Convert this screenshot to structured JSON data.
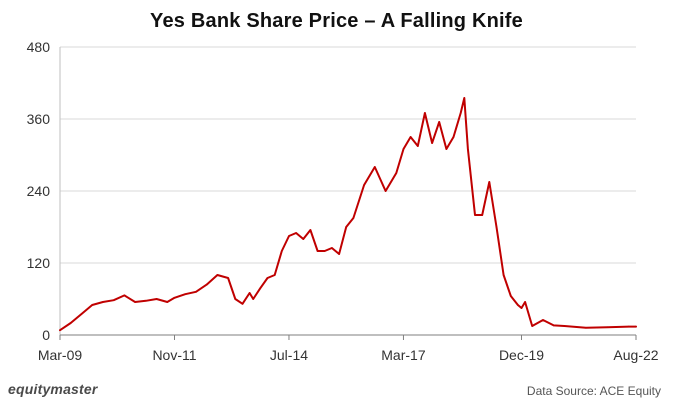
{
  "header": {
    "title": "Yes Bank Share Price – A Falling Knife"
  },
  "footer": {
    "brand": "equitymaster",
    "source": "Data Source: ACE Equity"
  },
  "chart_data": {
    "type": "line",
    "title": "Yes Bank Share Price – A Falling Knife",
    "xlabel": "",
    "ylabel": "",
    "ylim": [
      0,
      480
    ],
    "yticks": [
      0,
      120,
      240,
      360,
      480
    ],
    "xticks": [
      "Mar-09",
      "Nov-11",
      "Jul-14",
      "Mar-17",
      "Dec-19",
      "Aug-22"
    ],
    "grid": true,
    "legend": "none",
    "line_color": "#c00000",
    "series": [
      {
        "x": [
          "Mar-09",
          "Jun-09",
          "Sep-09",
          "Dec-09",
          "Mar-10",
          "Jun-10",
          "Sep-10",
          "Dec-10",
          "Mar-11",
          "Jun-11",
          "Sep-11",
          "Nov-11",
          "Feb-12",
          "May-12",
          "Aug-12",
          "Nov-12",
          "Feb-13",
          "Apr-13",
          "Jun-13",
          "Aug-13",
          "Sep-13",
          "Nov-13",
          "Jan-14",
          "Mar-14",
          "May-14",
          "Jul-14",
          "Sep-14",
          "Nov-14",
          "Jan-15",
          "Mar-15",
          "May-15",
          "Jul-15",
          "Sep-15",
          "Nov-15",
          "Jan-16",
          "Apr-16",
          "Jul-16",
          "Oct-16",
          "Jan-17",
          "Mar-17",
          "May-17",
          "Jul-17",
          "Sep-17",
          "Nov-17",
          "Jan-18",
          "Mar-18",
          "May-18",
          "Jul-18",
          "Aug-18",
          "Sep-18",
          "Nov-18",
          "Jan-19",
          "Mar-19",
          "May-19",
          "Jul-19",
          "Sep-19",
          "Nov-19",
          "Dec-19",
          "Jan-20",
          "Mar-20",
          "Jun-20",
          "Sep-20",
          "Dec-20",
          "Jun-21",
          "Dec-21",
          "Jun-22",
          "Aug-22"
        ],
        "values": [
          8,
          20,
          35,
          50,
          55,
          58,
          66,
          55,
          57,
          60,
          55,
          62,
          68,
          72,
          84,
          100,
          95,
          60,
          52,
          70,
          60,
          78,
          95,
          100,
          140,
          165,
          170,
          160,
          175,
          140,
          140,
          145,
          135,
          180,
          195,
          250,
          280,
          240,
          270,
          310,
          330,
          315,
          370,
          320,
          355,
          310,
          330,
          370,
          395,
          310,
          200,
          200,
          255,
          180,
          100,
          65,
          50,
          45,
          55,
          15,
          25,
          16,
          15,
          12,
          13,
          14,
          14
        ]
      }
    ]
  }
}
